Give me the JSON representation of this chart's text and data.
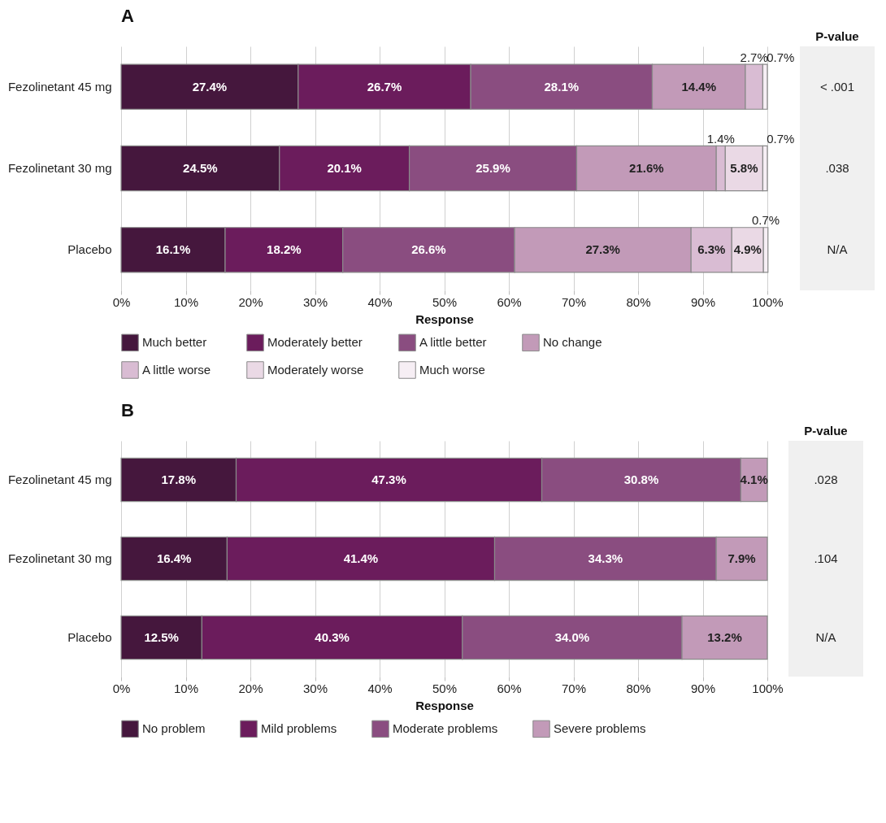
{
  "chart_data": [
    {
      "type": "bar",
      "orientation": "horizontal",
      "stacked": true,
      "title": "A",
      "xlabel": "Response",
      "categories": [
        "Fezolinetant 45 mg",
        "Fezolinetant 30 mg",
        "Placebo"
      ],
      "series": [
        {
          "name": "Much better",
          "color": "#45173d",
          "values": [
            27.4,
            24.5,
            16.1
          ],
          "value_labels": [
            "27.4%",
            "24.5%",
            "16.1%"
          ]
        },
        {
          "name": "Moderately better",
          "color": "#6b1c5c",
          "values": [
            26.7,
            20.1,
            18.2
          ],
          "value_labels": [
            "26.7%",
            "20.1%",
            "18.2%"
          ]
        },
        {
          "name": "A little better",
          "color": "#8a4d80",
          "values": [
            28.1,
            25.9,
            26.6
          ],
          "value_labels": [
            "28.1%",
            "25.9%",
            "26.6%"
          ]
        },
        {
          "name": "No change",
          "color": "#c29ab8",
          "values": [
            14.4,
            21.6,
            27.3
          ],
          "value_labels": [
            "14.4%",
            "21.6%",
            "27.3%"
          ]
        },
        {
          "name": "A little worse",
          "color": "#d9bcd3",
          "values": [
            2.7,
            1.4,
            6.3
          ],
          "value_labels": [
            "2.7%",
            "1.4%",
            "6.3%"
          ]
        },
        {
          "name": "Moderately worse",
          "color": "#ead9e5",
          "values": [
            null,
            5.8,
            4.9
          ],
          "value_labels": [
            null,
            "5.8%",
            "4.9%"
          ]
        },
        {
          "name": "Much worse",
          "color": "#f6eef4",
          "values": [
            0.7,
            0.7,
            0.7
          ],
          "value_labels": [
            "0.7%",
            "0.7%",
            "0.7%"
          ]
        }
      ],
      "xlim": [
        0,
        100
      ],
      "xticks": [
        {
          "value": 0,
          "label": "0%"
        },
        {
          "value": 10,
          "label": "10%"
        },
        {
          "value": 20,
          "label": "20%"
        },
        {
          "value": 30,
          "label": "30%"
        },
        {
          "value": 40,
          "label": "40%"
        },
        {
          "value": 50,
          "label": "50%"
        },
        {
          "value": 60,
          "label": "60%"
        },
        {
          "value": 70,
          "label": "70%"
        },
        {
          "value": 80,
          "label": "80%"
        },
        {
          "value": 90,
          "label": "90%"
        },
        {
          "value": 100,
          "label": "100%"
        }
      ],
      "grid": true,
      "legend": "bottom",
      "annotations": [
        "P-value",
        "< .001",
        ".038",
        "N/A"
      ]
    },
    {
      "type": "bar",
      "orientation": "horizontal",
      "stacked": true,
      "title": "B",
      "xlabel": "Response",
      "categories": [
        "Fezolinetant 45 mg",
        "Fezolinetant 30 mg",
        "Placebo"
      ],
      "series": [
        {
          "name": "No problem",
          "color": "#45173d",
          "values": [
            17.8,
            16.4,
            12.5
          ],
          "value_labels": [
            "17.8%",
            "16.4%",
            "12.5%"
          ]
        },
        {
          "name": "Mild problems",
          "color": "#6b1c5c",
          "values": [
            47.3,
            41.4,
            40.3
          ],
          "value_labels": [
            "47.3%",
            "41.4%",
            "40.3%"
          ]
        },
        {
          "name": "Moderate problems",
          "color": "#8a4d80",
          "values": [
            30.8,
            34.3,
            34.0
          ],
          "value_labels": [
            "30.8%",
            "34.3%",
            "34.0%"
          ]
        },
        {
          "name": "Severe problems",
          "color": "#c29ab8",
          "values": [
            4.1,
            7.9,
            13.2
          ],
          "value_labels": [
            "4.1%",
            "7.9%",
            "13.2%"
          ]
        }
      ],
      "xlim": [
        0,
        100
      ],
      "xticks": [
        {
          "value": 0,
          "label": "0%"
        },
        {
          "value": 10,
          "label": "10%"
        },
        {
          "value": 20,
          "label": "20%"
        },
        {
          "value": 30,
          "label": "30%"
        },
        {
          "value": 40,
          "label": "40%"
        },
        {
          "value": 50,
          "label": "50%"
        },
        {
          "value": 60,
          "label": "60%"
        },
        {
          "value": 70,
          "label": "70%"
        },
        {
          "value": 80,
          "label": "80%"
        },
        {
          "value": 90,
          "label": "90%"
        },
        {
          "value": 100,
          "label": "100%"
        }
      ],
      "grid": true,
      "legend": "bottom",
      "annotations": [
        "P-value",
        ".028",
        ".104",
        "N/A"
      ]
    }
  ]
}
